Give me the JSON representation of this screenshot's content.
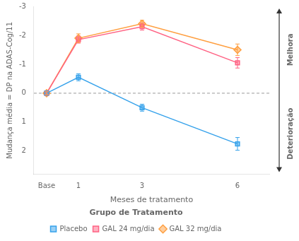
{
  "chart_data": {
    "type": "line",
    "x": [
      0,
      1,
      3,
      6
    ],
    "xlabel": "Meses de tratamento",
    "ylabel": "Mudança média = DP na ADAS-Cog/11",
    "xlim": [
      -0.4,
      7.0
    ],
    "xticks": [
      {
        "value": 0,
        "label": "Base"
      },
      1,
      3,
      6
    ],
    "ylim": [
      2.8,
      -3.0
    ],
    "yticks": [
      -3,
      -2,
      -1,
      0,
      1,
      2
    ],
    "grid": false,
    "legend": "bottom",
    "legend_title": "Grupo de Tratamento",
    "series": [
      {
        "name": "Placebo",
        "marker": "square",
        "values": [
          0,
          -0.55,
          0.5,
          1.75
        ],
        "errors": [
          0.05,
          0.12,
          0.12,
          0.22
        ]
      },
      {
        "name": "GAL 24 mg/dia",
        "marker": "square",
        "values": [
          0,
          -1.85,
          -2.3,
          -1.05
        ],
        "errors": [
          0.05,
          0.12,
          0.12,
          0.18
        ]
      },
      {
        "name": "GAL 32 mg/dia",
        "marker": "diamond",
        "values": [
          0,
          -1.9,
          -2.4,
          -1.5
        ],
        "errors": [
          0.05,
          0.15,
          0.12,
          0.2
        ]
      }
    ],
    "hline": 0,
    "annotations": [
      "Melhora",
      "Deterioração"
    ]
  }
}
